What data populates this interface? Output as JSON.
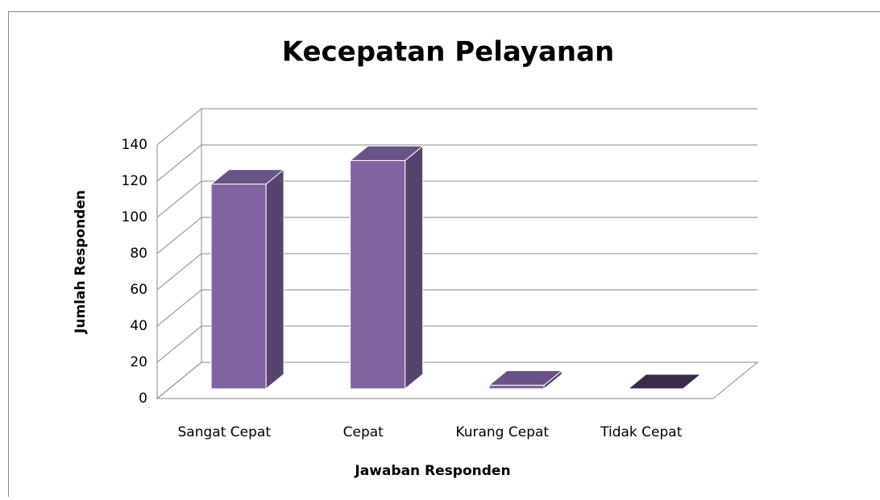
{
  "chart_data": {
    "type": "bar3d",
    "title": "Kecepatan Pelayanan",
    "x_label": "Jawaban Responden",
    "y_label": "Jumlah Responden",
    "categories": [
      "Sangat Cepat",
      "Cepat",
      "Kurang Cepat",
      "Tidak Cepat"
    ],
    "values": [
      113,
      126,
      2,
      0
    ],
    "color": "#8064a2",
    "ylim": [
      0,
      140
    ],
    "yticks": [
      0,
      20,
      40,
      60,
      80,
      100,
      120,
      140
    ],
    "grid": true
  }
}
